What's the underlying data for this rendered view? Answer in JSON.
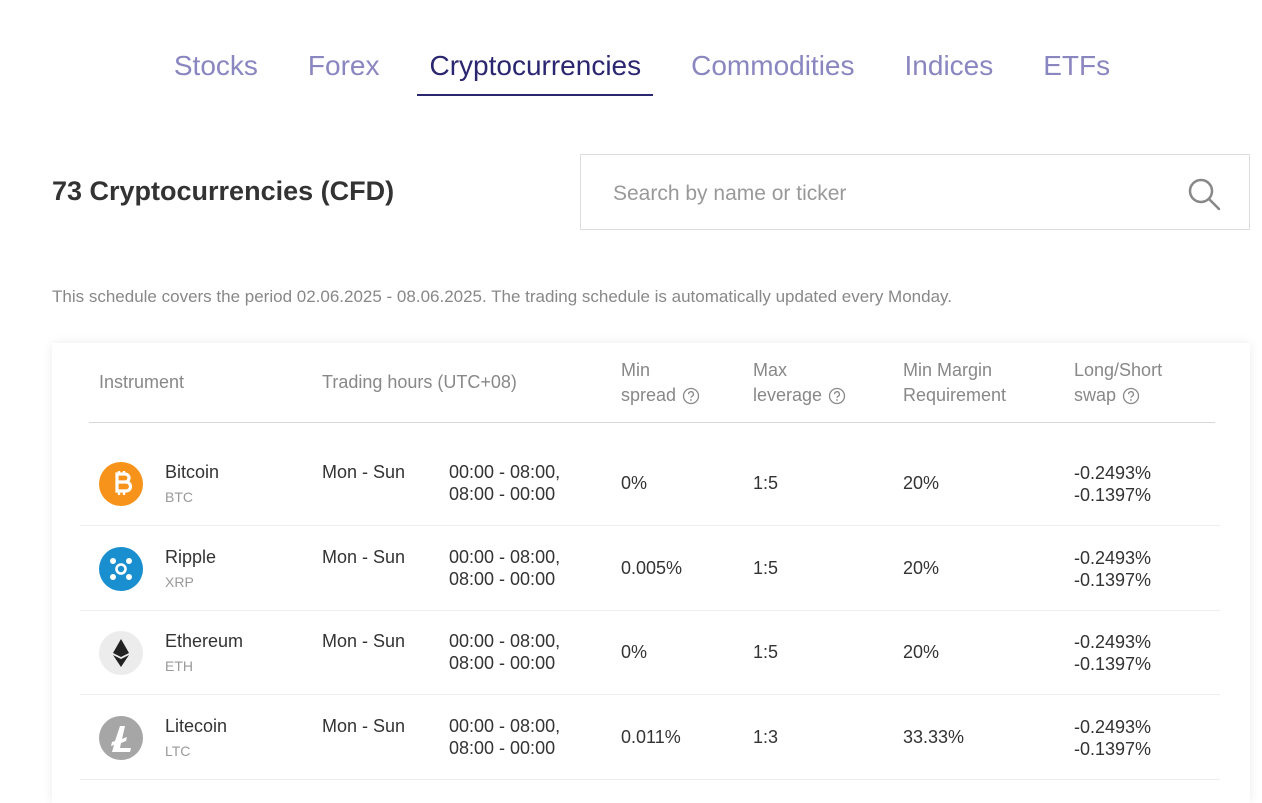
{
  "tabs": {
    "items": [
      "Stocks",
      "Forex",
      "Cryptocurrencies",
      "Commodities",
      "Indices",
      "ETFs"
    ],
    "active": 2
  },
  "heading": "73 Cryptocurrencies (CFD)",
  "search": {
    "placeholder": "Search by name or ticker"
  },
  "note": "This schedule covers the period 02.06.2025 - 08.06.2025. The trading schedule is automatically updated every Monday.",
  "table": {
    "columns": [
      {
        "lines": [
          "Instrument"
        ]
      },
      {
        "lines": [
          "Trading hours (UTC+08)"
        ]
      },
      {
        "lines": [
          "Min",
          "spread"
        ],
        "help": true
      },
      {
        "lines": [
          "Max",
          "leverage"
        ],
        "help": true
      },
      {
        "lines": [
          "Min Margin",
          "Requirement"
        ]
      },
      {
        "lines": [
          "Long/Short",
          "swap"
        ],
        "help": true
      }
    ],
    "rows": [
      {
        "name": "Bitcoin",
        "ticker": "BTC",
        "icon_color": "#f7931a",
        "days": "Mon - Sun",
        "hours": [
          "00:00 - 08:00,",
          "08:00 - 00:00"
        ],
        "min_spread": "0%",
        "max_leverage": "1:5",
        "min_margin": "20%",
        "swap": [
          "-0.2493%",
          "-0.1397%"
        ]
      },
      {
        "name": "Ripple",
        "ticker": "XRP",
        "icon_color": "#1a8fd0",
        "days": "Mon - Sun",
        "hours": [
          "00:00 - 08:00,",
          "08:00 - 00:00"
        ],
        "min_spread": "0.005%",
        "max_leverage": "1:5",
        "min_margin": "20%",
        "swap": [
          "-0.2493%",
          "-0.1397%"
        ]
      },
      {
        "name": "Ethereum",
        "ticker": "ETH",
        "icon_color": "#ececec",
        "days": "Mon - Sun",
        "hours": [
          "00:00 - 08:00,",
          "08:00 - 00:00"
        ],
        "min_spread": "0%",
        "max_leverage": "1:5",
        "min_margin": "20%",
        "swap": [
          "-0.2493%",
          "-0.1397%"
        ]
      },
      {
        "name": "Litecoin",
        "ticker": "LTC",
        "icon_color": "#a6a6a6",
        "days": "Mon - Sun",
        "hours": [
          "00:00 - 08:00,",
          "08:00 - 00:00"
        ],
        "min_spread": "0.011%",
        "max_leverage": "1:3",
        "min_margin": "33.33%",
        "swap": [
          "-0.2493%",
          "-0.1397%"
        ]
      }
    ]
  }
}
